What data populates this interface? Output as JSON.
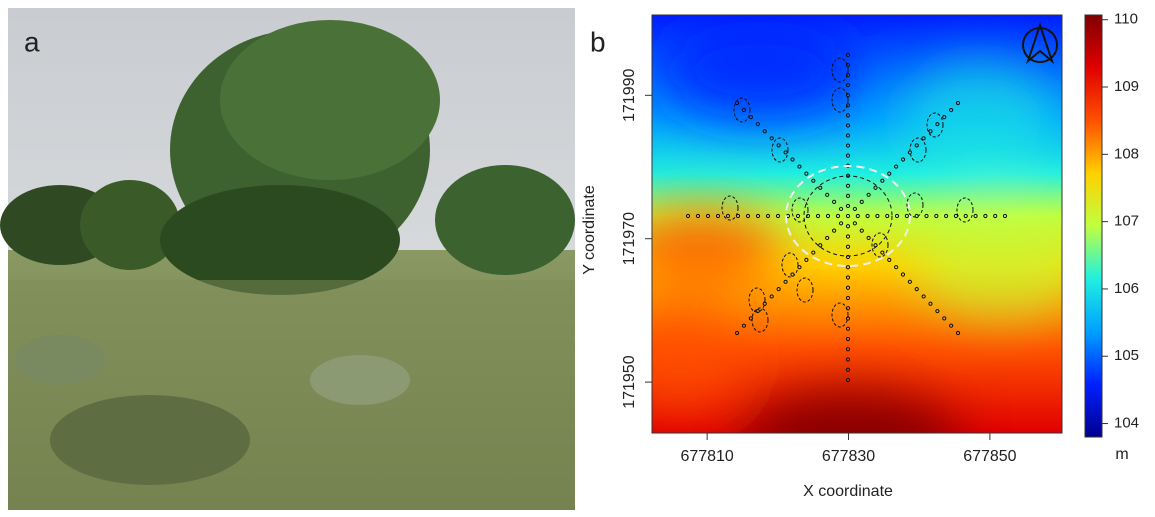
{
  "photo_label": "a",
  "chart_data": {
    "type": "heatmap",
    "label": "b",
    "x_label": "X coordinate",
    "y_label": "Y coordinate",
    "xlim": [
      677802.2,
      677860.2
    ],
    "ylim": [
      171942.9,
      172001.2
    ],
    "xticks": [
      677810,
      677830,
      677850
    ],
    "yticks": [
      171950,
      171970,
      171990
    ],
    "colorbar": {
      "lim": [
        103.8,
        110.07
      ],
      "ticks": [
        104,
        105,
        106,
        107,
        108,
        109,
        110
      ],
      "unit": "m",
      "colors": [
        "#00008f",
        "#0020ff",
        "#00a0ff",
        "#20f0e0",
        "#c0ff40",
        "#ffd000",
        "#ff5000",
        "#e00000",
        "#800000"
      ]
    }
  }
}
